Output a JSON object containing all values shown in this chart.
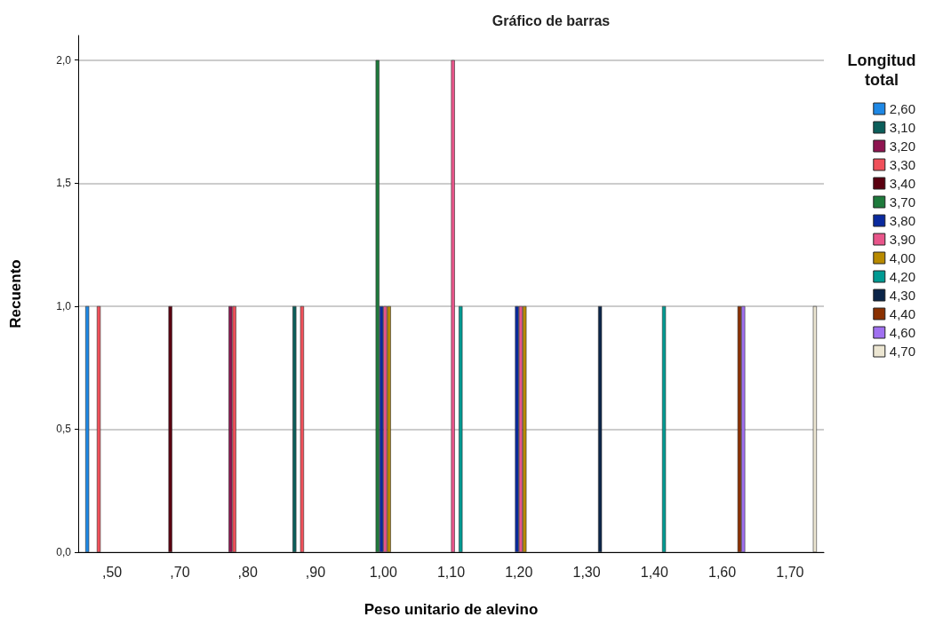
{
  "chart_data": {
    "type": "bar",
    "title": "Gráfico de barras",
    "xlabel": "Peso unitario de alevino",
    "ylabel": "Recuento",
    "legend_title": "Longitud total",
    "categories": [
      ",50",
      ",70",
      ",80",
      ",90",
      "1,00",
      "1,10",
      "1,20",
      "1,30",
      "1,40",
      "1,60",
      "1,70"
    ],
    "series": [
      {
        "name": "2,60",
        "color": "#1e88e5",
        "values": [
          1,
          null,
          null,
          null,
          null,
          null,
          null,
          null,
          null,
          null,
          null
        ]
      },
      {
        "name": "3,10",
        "color": "#0b5e5a",
        "values": [
          null,
          null,
          null,
          1,
          null,
          null,
          null,
          null,
          null,
          null,
          null
        ]
      },
      {
        "name": "3,20",
        "color": "#8e1450",
        "values": [
          null,
          null,
          1,
          null,
          null,
          null,
          null,
          null,
          null,
          null,
          null
        ]
      },
      {
        "name": "3,30",
        "color": "#f0505a",
        "values": [
          1,
          null,
          1,
          1,
          null,
          null,
          null,
          null,
          null,
          null,
          null
        ]
      },
      {
        "name": "3,40",
        "color": "#5a0010",
        "values": [
          null,
          1,
          null,
          null,
          null,
          null,
          null,
          null,
          null,
          null,
          null
        ]
      },
      {
        "name": "3,70",
        "color": "#1e7a3c",
        "values": [
          null,
          null,
          null,
          null,
          2,
          null,
          null,
          null,
          null,
          null,
          null
        ]
      },
      {
        "name": "3,80",
        "color": "#0a2a9e",
        "values": [
          null,
          null,
          null,
          null,
          1,
          null,
          1,
          null,
          null,
          null,
          null
        ]
      },
      {
        "name": "3,90",
        "color": "#e8558a",
        "values": [
          null,
          null,
          null,
          null,
          1,
          2,
          1,
          null,
          null,
          null,
          null
        ]
      },
      {
        "name": "4,00",
        "color": "#b88a00",
        "values": [
          null,
          null,
          null,
          null,
          1,
          null,
          1,
          null,
          null,
          null,
          null
        ]
      },
      {
        "name": "4,20",
        "color": "#009a92",
        "values": [
          null,
          null,
          null,
          null,
          null,
          1,
          null,
          null,
          1,
          null,
          null
        ]
      },
      {
        "name": "4,30",
        "color": "#0a2448",
        "values": [
          null,
          null,
          null,
          null,
          null,
          null,
          null,
          1,
          null,
          null,
          null
        ]
      },
      {
        "name": "4,40",
        "color": "#8a3000",
        "values": [
          null,
          null,
          null,
          null,
          null,
          null,
          null,
          null,
          null,
          1,
          null
        ]
      },
      {
        "name": "4,60",
        "color": "#a070f0",
        "values": [
          null,
          null,
          null,
          null,
          null,
          null,
          null,
          null,
          null,
          1,
          null
        ]
      },
      {
        "name": "4,70",
        "color": "#ece6d2",
        "values": [
          null,
          null,
          null,
          null,
          null,
          null,
          null,
          null,
          null,
          null,
          1
        ]
      }
    ],
    "ylim": [
      0,
      2.1
    ],
    "yticks": [
      {
        "value": 0,
        "label": "0,0"
      },
      {
        "value": 0.5,
        "label": "0,5"
      },
      {
        "value": 1,
        "label": "1,0"
      },
      {
        "value": 1.5,
        "label": "1,5"
      },
      {
        "value": 2,
        "label": "2,0"
      }
    ],
    "grid": "y",
    "legend": "right"
  }
}
